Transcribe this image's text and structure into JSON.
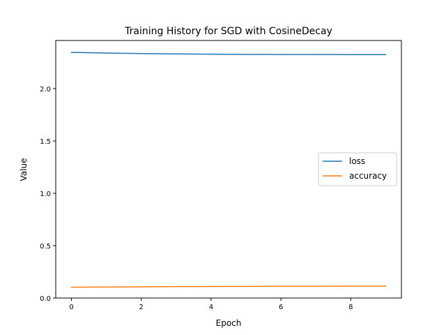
{
  "chart_data": {
    "type": "line",
    "title": "Training History for SGD with CosineDecay",
    "xlabel": "Epoch",
    "ylabel": "Value",
    "x": [
      0,
      1,
      2,
      3,
      4,
      5,
      6,
      7,
      8,
      9
    ],
    "series": [
      {
        "name": "loss",
        "color": "#1f77b4",
        "values": [
          2.346,
          2.34,
          2.335,
          2.332,
          2.329,
          2.327,
          2.326,
          2.326,
          2.325,
          2.325
        ]
      },
      {
        "name": "accuracy",
        "color": "#ff7f0e",
        "values": [
          0.103,
          0.105,
          0.107,
          0.109,
          0.11,
          0.111,
          0.112,
          0.112,
          0.113,
          0.113
        ]
      }
    ],
    "xlim": [
      -0.45,
      9.45
    ],
    "ylim": [
      0,
      2.46
    ],
    "xticks": [
      0,
      2,
      4,
      6,
      8
    ],
    "yticks": [
      0.0,
      0.5,
      1.0,
      1.5,
      2.0
    ],
    "xtick_labels": [
      "0",
      "2",
      "4",
      "6",
      "8"
    ],
    "ytick_labels": [
      "0.0",
      "0.5",
      "1.0",
      "1.5",
      "2.0"
    ],
    "grid": false,
    "legend_position": "center-right"
  }
}
